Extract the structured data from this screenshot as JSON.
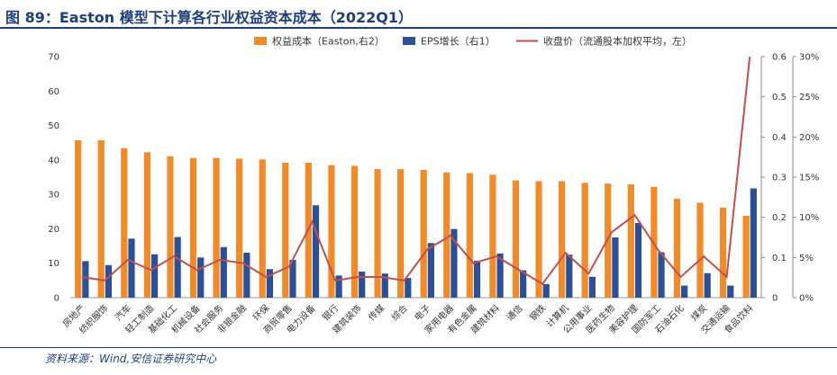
{
  "title": "图 89：Easton 模型下计算各行业权益资本成本（2022Q1）",
  "source": "资料来源：Wind,安信证券研究中心",
  "colors": {
    "bar1": "#f08b2c",
    "bar2": "#2d4f95",
    "line": "#c0504d",
    "title": "#1f3f7a"
  },
  "chart_data": {
    "type": "bar",
    "categories": [
      "房地产",
      "纺织服饰",
      "汽车",
      "轻工制造",
      "基础化工",
      "机械设备",
      "社会服务",
      "非银金融",
      "环保",
      "商贸零售",
      "电力设备",
      "银行",
      "建筑装饰",
      "传媒",
      "综合",
      "电子",
      "家用电器",
      "有色金属",
      "建筑材料",
      "通信",
      "钢铁",
      "计算机",
      "公用事业",
      "医药生物",
      "美容护理",
      "国防军工",
      "石油石化",
      "煤炭",
      "交通运输",
      "食品饮料"
    ],
    "series": [
      {
        "name": "权益成本（Easton,右2）",
        "type": "bar",
        "axis": "right2",
        "values": [
          0.196,
          0.196,
          0.186,
          0.181,
          0.176,
          0.174,
          0.174,
          0.173,
          0.172,
          0.168,
          0.168,
          0.165,
          0.164,
          0.16,
          0.16,
          0.159,
          0.156,
          0.155,
          0.153,
          0.146,
          0.145,
          0.145,
          0.143,
          0.142,
          0.141,
          0.138,
          0.123,
          0.118,
          0.112,
          0.102
        ]
      },
      {
        "name": "EPS增长（右1）",
        "type": "bar",
        "axis": "right1",
        "values": [
          0.091,
          0.081,
          0.147,
          0.108,
          0.151,
          0.1,
          0.126,
          0.112,
          0.071,
          0.094,
          0.23,
          0.055,
          0.065,
          0.06,
          0.049,
          0.136,
          0.171,
          0.092,
          0.11,
          0.068,
          0.034,
          0.107,
          0.052,
          0.15,
          0.186,
          0.113,
          0.03,
          0.061,
          0.03,
          0.272
        ]
      },
      {
        "name": "收盘价（流通股本加权平均，左）",
        "type": "line",
        "axis": "left",
        "values": [
          6,
          5,
          11,
          8,
          12,
          8,
          11,
          10,
          6,
          9,
          22,
          5,
          6,
          6,
          5,
          14,
          18,
          10,
          12,
          8,
          4,
          13,
          7,
          19,
          24,
          14,
          6,
          12,
          6,
          70
        ]
      }
    ],
    "axes": {
      "left": {
        "ticks": [
          "0",
          "10",
          "20",
          "30",
          "40",
          "50",
          "60",
          "70"
        ],
        "min": 0,
        "max": 70
      },
      "right1": {
        "ticks": [
          "0",
          "0.1",
          "0.2",
          "0.3",
          "0.4",
          "0.5",
          "0.6"
        ],
        "min": 0,
        "max": 0.6
      },
      "right2": {
        "ticks": [
          "0%",
          "5%",
          "10%",
          "15%",
          "20%",
          "25%",
          "30%"
        ],
        "min": 0,
        "max": 0.3
      }
    },
    "legend_position": "top-center",
    "grid": false
  }
}
